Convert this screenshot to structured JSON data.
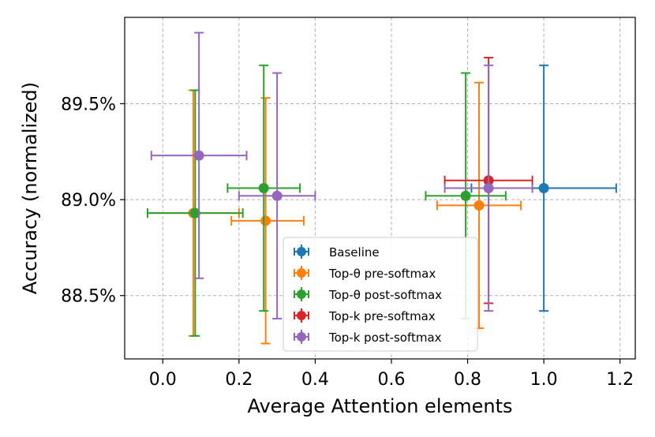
{
  "chart_data": {
    "type": "scatter",
    "title": "",
    "xlabel": "Average Attention elements",
    "ylabel": "Accuracy (normalized)",
    "xlim": [
      -0.1,
      1.24
    ],
    "ylim": [
      88.17,
      89.95
    ],
    "xticks": [
      0.0,
      0.2,
      0.4,
      0.6,
      0.8,
      1.0,
      1.2
    ],
    "xtick_labels": [
      "0.0",
      "0.2",
      "0.4",
      "0.6",
      "0.8",
      "1.0",
      "1.2"
    ],
    "yticks": [
      88.5,
      89.0,
      89.5
    ],
    "ytick_labels": [
      "88.5%",
      "89.0%",
      "89.5%"
    ],
    "grid": true,
    "legend_position": "lower-center",
    "series": [
      {
        "name": "Baseline",
        "color": "#1f77b4",
        "points": [
          {
            "x": 1.0,
            "y": 89.06,
            "xerr_low": 0.81,
            "xerr_high": 1.19,
            "yerr_low": 88.42,
            "yerr_high": 89.7
          }
        ]
      },
      {
        "name": "Top-θ pre-softmax",
        "color": "#ff7f0e",
        "points": [
          {
            "x": 0.08,
            "y": 88.93,
            "xerr_low": -0.04,
            "xerr_high": 0.2,
            "yerr_low": 88.29,
            "yerr_high": 89.57
          },
          {
            "x": 0.27,
            "y": 88.89,
            "xerr_low": 0.18,
            "xerr_high": 0.37,
            "yerr_low": 88.25,
            "yerr_high": 89.53
          },
          {
            "x": 0.83,
            "y": 88.97,
            "xerr_low": 0.72,
            "xerr_high": 0.94,
            "yerr_low": 88.33,
            "yerr_high": 89.61
          }
        ]
      },
      {
        "name": "Top-θ post-softmax",
        "color": "#2ca02c",
        "points": [
          {
            "x": 0.085,
            "y": 88.93,
            "xerr_low": -0.04,
            "xerr_high": 0.21,
            "yerr_low": 88.29,
            "yerr_high": 89.57
          },
          {
            "x": 0.265,
            "y": 89.06,
            "xerr_low": 0.17,
            "xerr_high": 0.36,
            "yerr_low": 88.42,
            "yerr_high": 89.7
          },
          {
            "x": 0.795,
            "y": 89.02,
            "xerr_low": 0.69,
            "xerr_high": 0.9,
            "yerr_low": 88.38,
            "yerr_high": 89.66
          }
        ]
      },
      {
        "name": "Top-k pre-softmax",
        "color": "#d62728",
        "points": [
          {
            "x": 0.855,
            "y": 89.1,
            "xerr_low": 0.74,
            "xerr_high": 0.97,
            "yerr_low": 88.46,
            "yerr_high": 89.74
          }
        ]
      },
      {
        "name": "Top-k post-softmax",
        "color": "#9467bd",
        "points": [
          {
            "x": 0.095,
            "y": 89.23,
            "xerr_low": -0.03,
            "xerr_high": 0.22,
            "yerr_low": 88.59,
            "yerr_high": 89.87
          },
          {
            "x": 0.3,
            "y": 89.02,
            "xerr_low": 0.2,
            "xerr_high": 0.4,
            "yerr_low": 88.38,
            "yerr_high": 89.66
          },
          {
            "x": 0.855,
            "y": 89.06,
            "xerr_low": 0.74,
            "xerr_high": 0.97,
            "yerr_low": 88.42,
            "yerr_high": 89.7
          }
        ]
      }
    ]
  }
}
